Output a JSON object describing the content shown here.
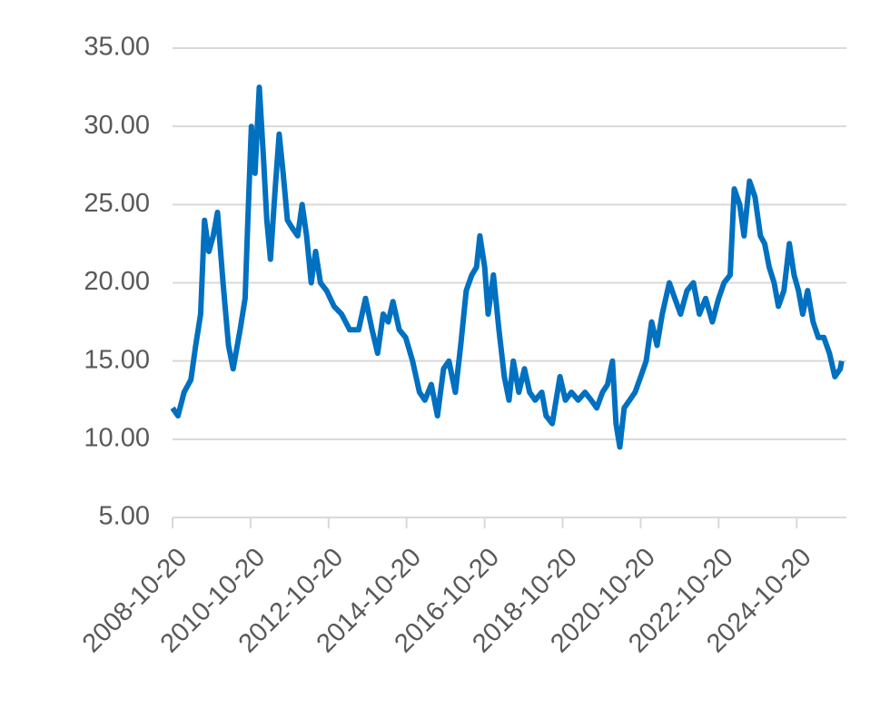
{
  "chart_data": {
    "type": "line",
    "x": [
      "2008-10-20",
      "2008-12-10",
      "2009-02-05",
      "2009-04-10",
      "2009-05-25",
      "2009-07-10",
      "2009-08-15",
      "2009-09-25",
      "2009-11-05",
      "2009-12-15",
      "2010-02-05",
      "2010-03-28",
      "2010-05-10",
      "2010-07-15",
      "2010-08-30",
      "2010-09-25",
      "2010-10-28",
      "2010-12-01",
      "2011-01-10",
      "2011-02-18",
      "2011-03-22",
      "2011-04-25",
      "2011-06-08",
      "2011-07-15",
      "2011-08-22",
      "2011-10-01",
      "2011-11-15",
      "2012-01-05",
      "2012-02-15",
      "2012-03-28",
      "2012-05-10",
      "2012-06-20",
      "2012-08-05",
      "2012-10-01",
      "2012-12-10",
      "2013-02-18",
      "2013-05-05",
      "2013-07-28",
      "2013-10-01",
      "2013-12-01",
      "2014-01-22",
      "2014-03-15",
      "2014-05-01",
      "2014-06-15",
      "2014-08-12",
      "2014-10-12",
      "2014-12-15",
      "2015-02-18",
      "2015-04-10",
      "2015-06-08",
      "2015-08-05",
      "2015-10-01",
      "2015-11-20",
      "2016-01-20",
      "2016-03-10",
      "2016-05-01",
      "2016-06-22",
      "2016-08-05",
      "2016-09-05",
      "2016-10-20",
      "2016-11-22",
      "2017-01-10",
      "2017-03-03",
      "2017-04-22",
      "2017-06-05",
      "2017-07-15",
      "2017-09-05",
      "2017-10-28",
      "2017-12-15",
      "2018-02-05",
      "2018-04-08",
      "2018-05-18",
      "2018-07-15",
      "2018-09-25",
      "2018-11-15",
      "2019-01-10",
      "2019-03-15",
      "2019-05-18",
      "2019-07-15",
      "2019-09-05",
      "2019-10-28",
      "2019-12-15",
      "2020-01-30",
      "2020-03-03",
      "2020-04-08",
      "2020-05-18",
      "2020-07-08",
      "2020-08-28",
      "2020-10-20",
      "2020-12-10",
      "2021-01-30",
      "2021-03-22",
      "2021-05-10",
      "2021-07-15",
      "2021-09-05",
      "2021-10-28",
      "2021-12-28",
      "2022-02-25",
      "2022-04-22",
      "2022-06-20",
      "2022-08-22",
      "2022-10-20",
      "2022-12-10",
      "2023-02-05",
      "2023-03-15",
      "2023-05-05",
      "2023-06-15",
      "2023-08-05",
      "2023-09-25",
      "2023-11-15",
      "2023-12-25",
      "2024-02-05",
      "2024-03-22",
      "2024-05-01",
      "2024-06-22",
      "2024-08-12",
      "2024-09-25",
      "2024-11-05",
      "2024-12-15",
      "2025-01-30",
      "2025-03-22",
      "2025-05-10",
      "2025-07-01",
      "2025-08-22",
      "2025-10-12",
      "2025-12-01",
      "2025-12-15"
    ],
    "series": [
      {
        "color": "#0070c0",
        "values": [
          12,
          11.5,
          13,
          13.8,
          16,
          18,
          24,
          22,
          23,
          24.5,
          20,
          16,
          14.5,
          17,
          19,
          24,
          30,
          27,
          32.5,
          28,
          24,
          21.5,
          26,
          29.5,
          27,
          24,
          23.5,
          23,
          25,
          23,
          20,
          22,
          20,
          19.5,
          18.5,
          18,
          17,
          17,
          19,
          17,
          15.5,
          18,
          17.5,
          18.8,
          17,
          16.5,
          15,
          13,
          12.5,
          13.5,
          11.5,
          14.5,
          15,
          13,
          16,
          19.5,
          20.5,
          21,
          23,
          21,
          18,
          20.5,
          17,
          14,
          12.5,
          15,
          13,
          14.5,
          13,
          12.5,
          13,
          11.5,
          11,
          14,
          12.5,
          13,
          12.5,
          13,
          12.5,
          12,
          13,
          13.5,
          15,
          11,
          9.5,
          12,
          12.5,
          13,
          14,
          15,
          17.5,
          16,
          18,
          20,
          19,
          18,
          19.5,
          20,
          18,
          19,
          17.5,
          19,
          20,
          20.5,
          26,
          25,
          23,
          26.5,
          25.5,
          23,
          22.5,
          21,
          20,
          18.5,
          19.5,
          22.5,
          20.5,
          19.5,
          18,
          19.5,
          17.5,
          16.5,
          16.5,
          15.5,
          14,
          14.5,
          15
        ]
      }
    ],
    "xlim": [
      "2008-10-20",
      "2026-01-28"
    ],
    "xticks": [
      "2008-10-20",
      "2010-10-20",
      "2012-10-20",
      "2014-10-20",
      "2016-10-20",
      "2018-10-20",
      "2020-10-20",
      "2022-10-20",
      "2024-10-20"
    ],
    "ylim": [
      5,
      35
    ],
    "yticks": [
      {
        "value": 5,
        "label": "5.00"
      },
      {
        "value": 10,
        "label": "10.00"
      },
      {
        "value": 15,
        "label": "15.00"
      },
      {
        "value": 20,
        "label": "20.00"
      },
      {
        "value": 25,
        "label": "25.00"
      },
      {
        "value": 30,
        "label": "30.00"
      },
      {
        "value": 35,
        "label": "35.00"
      }
    ],
    "grid": true
  }
}
